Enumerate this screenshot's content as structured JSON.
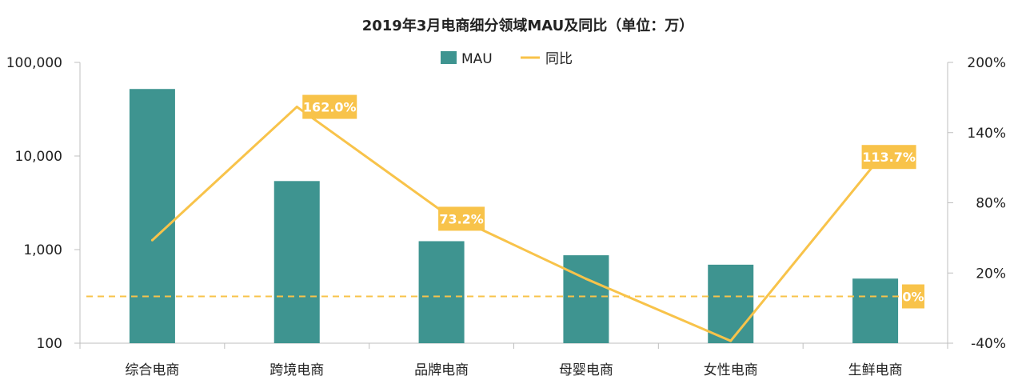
{
  "chart_data": {
    "type": "bar",
    "title": "2019年3月电商细分领域MAU及同比（单位：万）",
    "categories": [
      "综合电商",
      "跨境电商",
      "品牌电商",
      "母婴电商",
      "女性电商",
      "生鲜电商"
    ],
    "series": [
      {
        "name": "MAU",
        "type": "bar",
        "axis": "left",
        "color": "#3e9490",
        "values": [
          52000,
          5400,
          1230,
          870,
          690,
          490
        ]
      },
      {
        "name": "同比",
        "type": "line",
        "axis": "right",
        "color": "#f8c34a",
        "values": [
          48,
          162.0,
          73.2,
          15,
          -38,
          113.7
        ]
      }
    ],
    "data_labels": [
      {
        "series": "同比",
        "category": "跨境电商",
        "text": "162.0%"
      },
      {
        "series": "同比",
        "category": "品牌电商",
        "text": "73.2%"
      },
      {
        "series": "同比",
        "category": "生鲜电商",
        "text": "113.7%"
      }
    ],
    "reference_line": {
      "axis": "right",
      "value": 0,
      "style": "dashed",
      "color": "#f8c34a",
      "label": "0%"
    },
    "y_left": {
      "scale": "log",
      "ylim": [
        100,
        100000
      ],
      "ticks": [
        "100",
        "1,000",
        "10,000",
        "100,000"
      ]
    },
    "y_right": {
      "ylim": [
        -40,
        200
      ],
      "ticks": [
        "-40%",
        "20%",
        "80%",
        "140%",
        "200%"
      ]
    },
    "legend": {
      "position": "top-center",
      "items": [
        "MAU",
        "同比"
      ]
    },
    "grid": false
  }
}
